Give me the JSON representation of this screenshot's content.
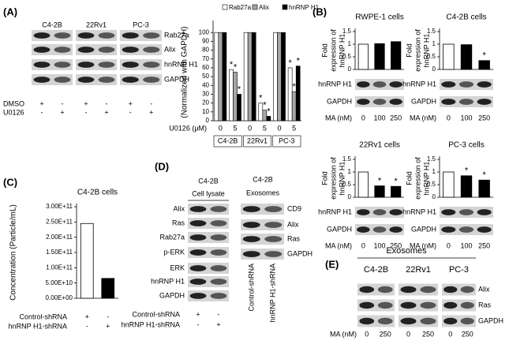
{
  "panel_labels": [
    "(A)",
    "(B)",
    "(C)",
    "(D)",
    "(E)"
  ],
  "blot_a": {
    "columns": [
      "C4-2B",
      "22Rv1",
      "PC-3"
    ],
    "rows": [
      "Rab27a",
      "Alix",
      "hnRNP H1",
      "GAPDH"
    ],
    "treatments": [
      {
        "label": "DMSO",
        "signs": [
          "+",
          "-",
          "+",
          "-",
          "+",
          "-"
        ]
      },
      {
        "label": "U0126",
        "signs": [
          "-",
          "+",
          "-",
          "+",
          "-",
          "+"
        ]
      }
    ]
  },
  "blot_d_lysate": {
    "header": "C4-2B",
    "subheader": "Cell lysate",
    "rows": [
      "Alix",
      "Ras",
      "Rab27a",
      "p-ERK",
      "ERK",
      "hnRNP H1",
      "GAPDH"
    ],
    "treatments": [
      {
        "label": "Control-shRNA",
        "signs": [
          "+",
          "-"
        ]
      },
      {
        "label": "hnRNP H1-shRNA",
        "signs": [
          "-",
          "+"
        ]
      }
    ]
  },
  "blot_d_exosomes": {
    "header": "C4-2B",
    "subheader": "Exosomes",
    "rows": [
      "CD9",
      "Alix",
      "Ras",
      "GAPDH"
    ],
    "lanes": [
      "Control-shRNA",
      "hnRNP H1-shRNA"
    ]
  },
  "blot_e": {
    "header": "Exosomes",
    "columns": [
      "C4-2B",
      "22Rv1",
      "PC-3"
    ],
    "rows": [
      "Alix",
      "Ras",
      "GAPDH"
    ],
    "x_label": "MA (nM)",
    "lanes": [
      "0",
      "250",
      "0",
      "250",
      "0",
      "250"
    ]
  },
  "chart_data": [
    {
      "type": "bar",
      "ylabel": "(Normalized with GAPDH)",
      "xlabel": "U0126 (μM)",
      "categories": [
        "0",
        "5",
        "0",
        "5",
        "0",
        "5"
      ],
      "groups": [
        "C4-2B",
        "22Rv1",
        "PC-3"
      ],
      "ylim": [
        0,
        110
      ],
      "yticks": [
        0,
        10,
        20,
        30,
        40,
        50,
        60,
        70,
        80,
        90,
        100
      ],
      "series": [
        {
          "name": "Rab27a",
          "color": "#ffffff",
          "values": [
            100,
            58,
            100,
            20,
            100,
            60
          ],
          "annotations": [
            null,
            "*",
            null,
            "*",
            null,
            "*"
          ]
        },
        {
          "name": "Alix",
          "color": "#a6a6a6",
          "values": [
            100,
            55,
            100,
            12,
            100,
            33
          ],
          "annotations": [
            null,
            "*",
            null,
            "*",
            null,
            "*"
          ]
        },
        {
          "name": "hnRNP H1",
          "color": "#000000",
          "values": [
            100,
            30,
            100,
            5,
            100,
            62
          ],
          "annotations": [
            null,
            "*",
            null,
            "*",
            null,
            "*"
          ]
        }
      ]
    },
    {
      "type": "bar",
      "title": "RWPE-1 cells",
      "ylabel_lines": [
        "Fold",
        "expression of",
        "hnRNP H1"
      ],
      "x_label": "MA (nM)",
      "categories": [
        "0",
        "100",
        "250"
      ],
      "values": [
        1,
        1.02,
        1.1
      ],
      "colors": [
        "#ffffff",
        "#000000",
        "#000000"
      ],
      "ylim": [
        0,
        1.5
      ],
      "yticks": [
        0,
        0.5,
        1,
        1.5
      ],
      "blot_rows": [
        "hnRNP H1",
        "GAPDH"
      ]
    },
    {
      "type": "bar",
      "title": "C4-2B cells",
      "ylabel_lines": [
        "Fold",
        "expression of",
        "hnRNP H1"
      ],
      "x_label": "MA (nM)",
      "categories": [
        "0",
        "100",
        "250"
      ],
      "values": [
        1,
        0.98,
        0.35
      ],
      "colors": [
        "#ffffff",
        "#000000",
        "#000000"
      ],
      "annotations": [
        null,
        null,
        "*"
      ],
      "ylim": [
        0,
        1.5
      ],
      "yticks": [
        0,
        0.5,
        1,
        1.5
      ],
      "blot_rows": [
        "hnRNP H1",
        "GAPDH"
      ]
    },
    {
      "type": "bar",
      "title": "22Rv1 cells",
      "ylabel_lines": [
        "Fold",
        "expression of",
        "hnRNP H1"
      ],
      "x_label": "MA (nM)",
      "categories": [
        "0",
        "100",
        "250"
      ],
      "values": [
        1,
        0.45,
        0.43
      ],
      "colors": [
        "#ffffff",
        "#000000",
        "#000000"
      ],
      "annotations": [
        null,
        "*",
        "*"
      ],
      "ylim": [
        0,
        1.5
      ],
      "yticks": [
        0,
        0.5,
        1,
        1.5
      ],
      "blot_rows": [
        "hnRNP H1",
        "GAPDH"
      ]
    },
    {
      "type": "bar",
      "title": "PC-3 cells",
      "ylabel_lines": [
        "Fold",
        "expression of",
        "hnRNP H1"
      ],
      "x_label": "MA (nM)",
      "categories": [
        "0",
        "100",
        "250"
      ],
      "values": [
        1,
        0.85,
        0.68
      ],
      "colors": [
        "#ffffff",
        "#000000",
        "#000000"
      ],
      "annotations": [
        null,
        "*",
        "*"
      ],
      "ylim": [
        0,
        1.5
      ],
      "yticks": [
        0,
        0.5,
        1,
        1.5
      ],
      "blot_rows": [
        "hnRNP H1",
        "GAPDH"
      ]
    },
    {
      "type": "bar",
      "title": "C4-2B cells",
      "ylabel": "Concentration (Particle/mL)",
      "values": [
        245000000000,
        65000000000
      ],
      "colors": [
        "#ffffff",
        "#000000"
      ],
      "ylim": [
        0,
        300000000000
      ],
      "yticks": [
        {
          "value": 0,
          "label": "0.00E+00"
        },
        {
          "value": 50000000000,
          "label": "5.00E+10"
        },
        {
          "value": 100000000000,
          "label": "1.00E+11"
        },
        {
          "value": 150000000000,
          "label": "1.50E+11"
        },
        {
          "value": 200000000000,
          "label": "2.00E+11"
        },
        {
          "value": 250000000000,
          "label": "2.50E+11"
        },
        {
          "value": 300000000000,
          "label": "3.00E+11"
        }
      ],
      "treatments": [
        {
          "label": "Control-shRNA",
          "signs": [
            "+",
            "-"
          ]
        },
        {
          "label": "hnRNP H1-shRNA",
          "signs": [
            "-",
            "+"
          ]
        }
      ]
    }
  ]
}
